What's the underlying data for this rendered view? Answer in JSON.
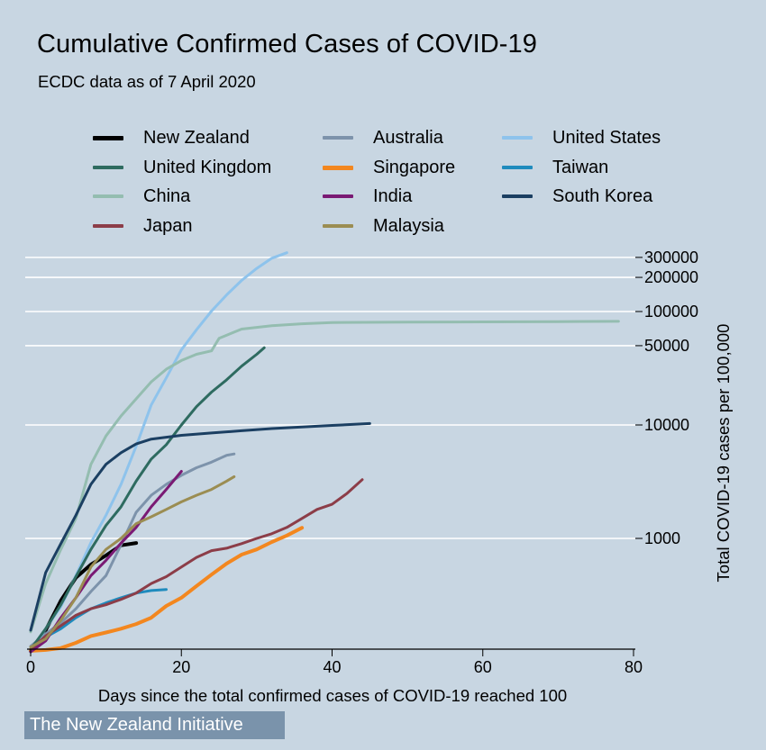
{
  "chart_data": {
    "type": "line",
    "title": "Cumulative Confirmed Cases of COVID-19",
    "subtitle": "ECDC data as of 7 April 2020",
    "xlabel": "Days since the total confirmed cases of COVID-19 reached 100",
    "ylabel": "Total COVID-19 cases per 100,000",
    "xlim": [
      0,
      80
    ],
    "ylim_log": [
      100,
      300000
    ],
    "y_scale": "log",
    "x_ticks": [
      "0",
      "20",
      "40",
      "60",
      "80"
    ],
    "y_ticks": [
      {
        "value": 1000,
        "label": "1000"
      },
      {
        "value": 10000,
        "label": "10000"
      },
      {
        "value": 50000,
        "label": "50000"
      },
      {
        "value": 100000,
        "label": "100000"
      },
      {
        "value": 200000,
        "label": "200000"
      },
      {
        "value": 300000,
        "label": "300000"
      }
    ],
    "grid": true,
    "legend_position": "top",
    "series": [
      {
        "name": "New Zealand",
        "color": "#000000",
        "width": 4,
        "x": [
          0,
          2,
          4,
          6,
          8,
          10,
          12,
          14
        ],
        "y": [
          102,
          155,
          283,
          451,
          589,
          708,
          868,
          911
        ]
      },
      {
        "name": "Australia",
        "color": "#7d93ab",
        "width": 3,
        "x": [
          0,
          2,
          4,
          6,
          8,
          10,
          12,
          14,
          16,
          18,
          20,
          22,
          24,
          26,
          27
        ],
        "y": [
          112,
          144,
          180,
          240,
          340,
          470,
          880,
          1700,
          2400,
          3000,
          3600,
          4200,
          4700,
          5400,
          5550
        ]
      },
      {
        "name": "United States",
        "color": "#8ec3ec",
        "width": 3,
        "x": [
          0,
          2,
          4,
          6,
          8,
          10,
          12,
          14,
          16,
          18,
          20,
          22,
          24,
          26,
          28,
          30,
          32,
          34
        ],
        "y": [
          100,
          160,
          250,
          470,
          920,
          1600,
          3000,
          6500,
          15000,
          26000,
          46000,
          69000,
          101000,
          140000,
          188000,
          240000,
          295000,
          330000
        ]
      },
      {
        "name": "United Kingdom",
        "color": "#2e6b60",
        "width": 3,
        "x": [
          0,
          2,
          4,
          6,
          8,
          10,
          12,
          14,
          16,
          18,
          20,
          22,
          24,
          26,
          28,
          30,
          31
        ],
        "y": [
          105,
          160,
          260,
          460,
          800,
          1300,
          1900,
          3200,
          5000,
          6700,
          10000,
          14500,
          19500,
          25000,
          33000,
          42000,
          48000
        ]
      },
      {
        "name": "Singapore",
        "color": "#f3871f",
        "width": 4,
        "x": [
          0,
          2,
          4,
          6,
          8,
          10,
          12,
          14,
          16,
          18,
          20,
          22,
          24,
          26,
          28,
          30,
          32,
          34,
          36
        ],
        "y": [
          102,
          104,
          108,
          120,
          138,
          148,
          160,
          176,
          200,
          254,
          300,
          380,
          480,
          600,
          720,
          800,
          930,
          1060,
          1240
        ]
      },
      {
        "name": "Taiwan",
        "color": "#1f8bbd",
        "width": 3,
        "x": [
          0,
          2,
          4,
          6,
          8,
          10,
          12,
          14,
          16,
          18
        ],
        "y": [
          100,
          135,
          160,
          200,
          240,
          270,
          300,
          330,
          347,
          355
        ]
      },
      {
        "name": "China",
        "color": "#94bdb0",
        "width": 3,
        "x": [
          0,
          2,
          4,
          6,
          8,
          10,
          12,
          14,
          16,
          18,
          20,
          22,
          24,
          25,
          28,
          32,
          36,
          40,
          50,
          60,
          70,
          78
        ],
        "y": [
          150,
          400,
          800,
          1500,
          4500,
          8000,
          12000,
          17000,
          24000,
          31000,
          37000,
          42000,
          45000,
          58000,
          70000,
          75000,
          78000,
          80000,
          80800,
          81000,
          81500,
          82000
        ]
      },
      {
        "name": "India",
        "color": "#7a1a74",
        "width": 3,
        "x": [
          0,
          2,
          4,
          6,
          8,
          10,
          12,
          14,
          16,
          18,
          20
        ],
        "y": [
          100,
          125,
          200,
          300,
          470,
          640,
          910,
          1250,
          1900,
          2700,
          3900
        ]
      },
      {
        "name": "South Korea",
        "color": "#1b3f62",
        "width": 3,
        "x": [
          0,
          2,
          4,
          6,
          8,
          10,
          12,
          14,
          16,
          18,
          20,
          24,
          28,
          32,
          36,
          40,
          45
        ],
        "y": [
          155,
          500,
          900,
          1600,
          3000,
          4500,
          5700,
          6800,
          7500,
          7800,
          8100,
          8500,
          8900,
          9300,
          9600,
          9900,
          10300
        ]
      },
      {
        "name": "Japan",
        "color": "#8c3d48",
        "width": 3,
        "x": [
          0,
          2,
          4,
          6,
          8,
          10,
          12,
          14,
          16,
          18,
          20,
          22,
          24,
          26,
          28,
          30,
          32,
          34,
          36,
          38,
          40,
          42,
          44
        ],
        "y": [
          105,
          138,
          170,
          210,
          240,
          260,
          290,
          330,
          400,
          460,
          560,
          680,
          780,
          820,
          900,
          1000,
          1100,
          1250,
          1500,
          1800,
          2000,
          2500,
          3300
        ]
      },
      {
        "name": "Malaysia",
        "color": "#9b8d52",
        "width": 3,
        "x": [
          0,
          2,
          4,
          6,
          8,
          10,
          12,
          14,
          16,
          18,
          20,
          22,
          24,
          26,
          27
        ],
        "y": [
          110,
          130,
          190,
          300,
          560,
          800,
          1000,
          1350,
          1550,
          1800,
          2100,
          2400,
          2700,
          3200,
          3500
        ]
      }
    ],
    "legend_order": [
      "New Zealand",
      "United Kingdom",
      "China",
      "Japan",
      "Australia",
      "Singapore",
      "India",
      "Malaysia",
      "United States",
      "Taiwan",
      "South Korea"
    ]
  },
  "footer": {
    "text": "The New Zealand Initiative"
  }
}
